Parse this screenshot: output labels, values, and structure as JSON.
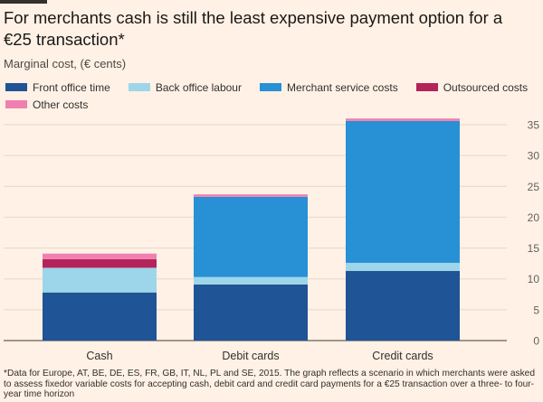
{
  "title": "For merchants cash is still the least expensive payment option for a €25 transaction*",
  "subtitle": "Marginal cost, (€ cents)",
  "footnote": "*Data for Europe, AT, BE, DE, ES, FR, GB, IT, NL, PL and SE, 2015. The graph reflects a scenario in which merchants were asked to assess fixedor variable costs for accepting cash, debit card and credit card payments for a €25 transaction over a three- to four-year time horizon",
  "chart_data": {
    "type": "bar",
    "stacked": true,
    "categories": [
      "Cash",
      "Debit cards",
      "Credit cards"
    ],
    "series": [
      {
        "name": "Front office time",
        "color": "#1f5496",
        "values": [
          7.8,
          9.1,
          11.3
        ]
      },
      {
        "name": "Back office labour",
        "color": "#9dd6ea",
        "values": [
          4.0,
          1.2,
          1.3
        ]
      },
      {
        "name": "Merchant service costs",
        "color": "#2890d4",
        "values": [
          0.0,
          13.0,
          23.0
        ]
      },
      {
        "name": "Outsourced costs",
        "color": "#b3245a",
        "values": [
          1.4,
          0.0,
          0.0
        ]
      },
      {
        "name": "Other costs",
        "color": "#f080b0",
        "values": [
          0.9,
          0.4,
          0.4
        ]
      }
    ],
    "ylim": [
      0,
      35
    ],
    "yticks": [
      0,
      5,
      10,
      15,
      20,
      25,
      30,
      35
    ],
    "y_axis_position": "right",
    "grid": true,
    "legend_position": "top"
  }
}
